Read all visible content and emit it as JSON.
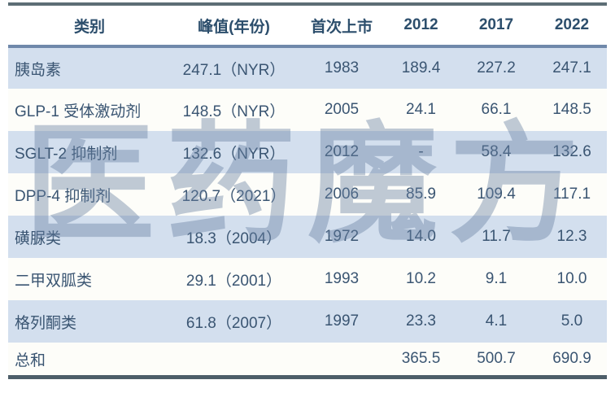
{
  "watermark": {
    "text": "医药魔方"
  },
  "table": {
    "columns": [
      {
        "label": "类别"
      },
      {
        "label": "峰值(年份)"
      },
      {
        "label": "首次上市"
      },
      {
        "label": "2012"
      },
      {
        "label": "2017"
      },
      {
        "label": "2022"
      }
    ],
    "rows": [
      {
        "category": "胰岛素",
        "peak": "247.1（NYR）",
        "first_launch": "1983",
        "y2012": "189.4",
        "y2017": "227.2",
        "y2022": "247.1"
      },
      {
        "category": "GLP-1 受体激动剂",
        "peak": "148.5（NYR）",
        "first_launch": "2005",
        "y2012": "24.1",
        "y2017": "66.1",
        "y2022": "148.5"
      },
      {
        "category": "SGLT-2 抑制剂",
        "peak": "132.6（NYR）",
        "first_launch": "2012",
        "y2012": "-",
        "y2017": "58.4",
        "y2022": "132.6"
      },
      {
        "category": "DPP-4 抑制剂",
        "peak": "120.7（2021）",
        "first_launch": "2006",
        "y2012": "85.9",
        "y2017": "109.4",
        "y2022": "117.1"
      },
      {
        "category": "磺脲类",
        "peak": "18.3（2004）",
        "first_launch": "1972",
        "y2012": "14.0",
        "y2017": "11.7",
        "y2022": "12.3"
      },
      {
        "category": "二甲双胍类",
        "peak": "29.1（2001）",
        "first_launch": "1993",
        "y2012": "10.2",
        "y2017": "9.1",
        "y2022": "10.0"
      },
      {
        "category": "格列酮类",
        "peak": "61.8（2007）",
        "first_launch": "1997",
        "y2012": "23.3",
        "y2017": "4.1",
        "y2022": "5.0"
      },
      {
        "category": "总和",
        "peak": "",
        "first_launch": "",
        "y2012": "365.5",
        "y2017": "500.7",
        "y2022": "690.9"
      }
    ]
  },
  "chart_data": {
    "type": "table",
    "title": "",
    "columns": [
      "类别",
      "峰值(年份)",
      "首次上市",
      "2012",
      "2017",
      "2022"
    ],
    "rows": [
      [
        "胰岛素",
        "247.1（NYR）",
        "1983",
        "189.4",
        "227.2",
        "247.1"
      ],
      [
        "GLP-1 受体激动剂",
        "148.5（NYR）",
        "2005",
        "24.1",
        "66.1",
        "148.5"
      ],
      [
        "SGLT-2 抑制剂",
        "132.6（NYR）",
        "2012",
        "-",
        "58.4",
        "132.6"
      ],
      [
        "DPP-4 抑制剂",
        "120.7（2021）",
        "2006",
        "85.9",
        "109.4",
        "117.1"
      ],
      [
        "磺脲类",
        "18.3（2004）",
        "1972",
        "14.0",
        "11.7",
        "12.3"
      ],
      [
        "二甲双胍类",
        "29.1（2001）",
        "1993",
        "10.2",
        "9.1",
        "10.0"
      ],
      [
        "格列酮类",
        "61.8（2007）",
        "1997",
        "23.3",
        "4.1",
        "5.0"
      ],
      [
        "总和",
        "",
        "",
        "365.5",
        "500.7",
        "690.9"
      ]
    ],
    "watermark": "医药魔方"
  },
  "colors": {
    "top_border": "#5d6e75",
    "header_separator": "#6f88aa",
    "bottom_border": "#4d5e69",
    "row_stripe_blue": "#d3dfee",
    "row_stripe_white": "#fdfdf9",
    "header_text": "#2c4e6c",
    "body_text": "#3a5572",
    "watermark_text": "rgba(104,128,162,0.42)"
  }
}
